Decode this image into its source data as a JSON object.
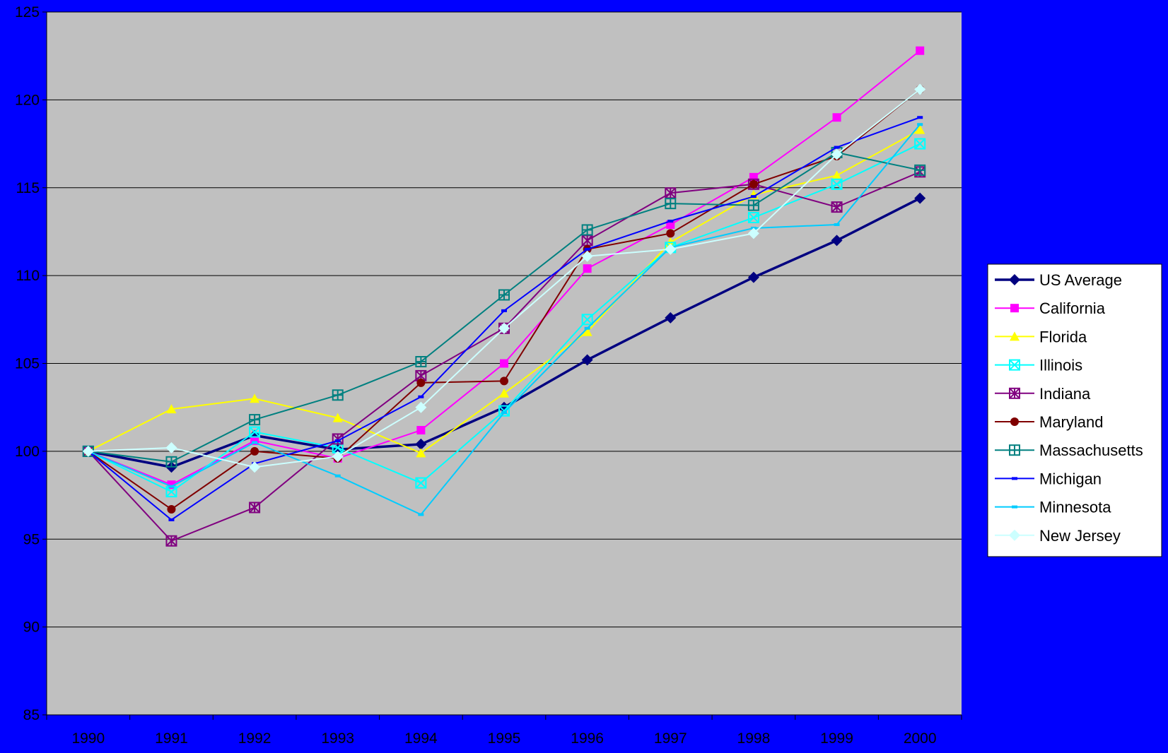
{
  "colors": {
    "background": "#0000ff",
    "plot_area": "#c0c0c0",
    "gridline": "#000000"
  },
  "chart_data": {
    "type": "line",
    "title": "",
    "xlabel": "",
    "ylabel": "",
    "x": [
      "1990",
      "1991",
      "1992",
      "1993",
      "1994",
      "1995",
      "1996",
      "1997",
      "1998",
      "1999",
      "2000"
    ],
    "ylim": [
      85,
      125
    ],
    "yticks": [
      85,
      90,
      95,
      100,
      105,
      110,
      115,
      120,
      125
    ],
    "grid": true,
    "legend_position": "right",
    "series": [
      {
        "name": "US Average",
        "color": "#000080",
        "marker": "diamond",
        "values": [
          100,
          99.1,
          100.9,
          100.1,
          100.4,
          102.5,
          105.2,
          107.6,
          109.9,
          112.0,
          114.4
        ]
      },
      {
        "name": "California",
        "color": "#ff00ff",
        "marker": "square",
        "values": [
          100,
          98.1,
          100.6,
          99.6,
          101.2,
          105.0,
          110.4,
          112.9,
          115.6,
          119.0,
          122.8
        ]
      },
      {
        "name": "Florida",
        "color": "#ffff00",
        "marker": "triangle",
        "values": [
          100,
          102.4,
          103.0,
          101.9,
          99.9,
          103.3,
          106.8,
          111.9,
          114.6,
          115.7,
          118.3
        ]
      },
      {
        "name": "Illinois",
        "color": "#00ffff",
        "marker": "square-x",
        "values": [
          100,
          97.7,
          101.1,
          100.2,
          98.2,
          102.3,
          107.5,
          111.6,
          113.3,
          115.2,
          117.5
        ]
      },
      {
        "name": "Indiana",
        "color": "#800080",
        "marker": "square-star",
        "values": [
          100,
          94.9,
          96.8,
          100.7,
          104.3,
          107.0,
          112.0,
          114.7,
          115.2,
          113.9,
          115.9
        ]
      },
      {
        "name": "Maryland",
        "color": "#800000",
        "marker": "circle",
        "values": [
          100,
          96.7,
          100.0,
          99.6,
          103.9,
          104.0,
          111.5,
          112.4,
          115.2,
          116.8,
          120.6
        ]
      },
      {
        "name": "Massachusetts",
        "color": "#008080",
        "marker": "square-plus",
        "values": [
          100,
          99.4,
          101.8,
          103.2,
          105.1,
          108.9,
          112.6,
          114.1,
          114.0,
          117.0,
          116.0
        ]
      },
      {
        "name": "Michigan",
        "color": "#0000ff",
        "marker": "dash",
        "values": [
          100,
          96.1,
          99.3,
          100.6,
          103.1,
          108.0,
          111.5,
          113.1,
          114.5,
          117.3,
          119.0
        ]
      },
      {
        "name": "Minnesota",
        "color": "#00ccff",
        "marker": "dash",
        "values": [
          100,
          98.0,
          100.5,
          98.6,
          96.4,
          102.2,
          107.0,
          111.6,
          112.7,
          112.9,
          118.6
        ]
      },
      {
        "name": "New Jersey",
        "color": "#ccffff",
        "marker": "diamond",
        "values": [
          100,
          100.2,
          99.1,
          99.7,
          102.5,
          107.0,
          111.1,
          111.5,
          112.4,
          116.9,
          120.6
        ]
      }
    ]
  }
}
